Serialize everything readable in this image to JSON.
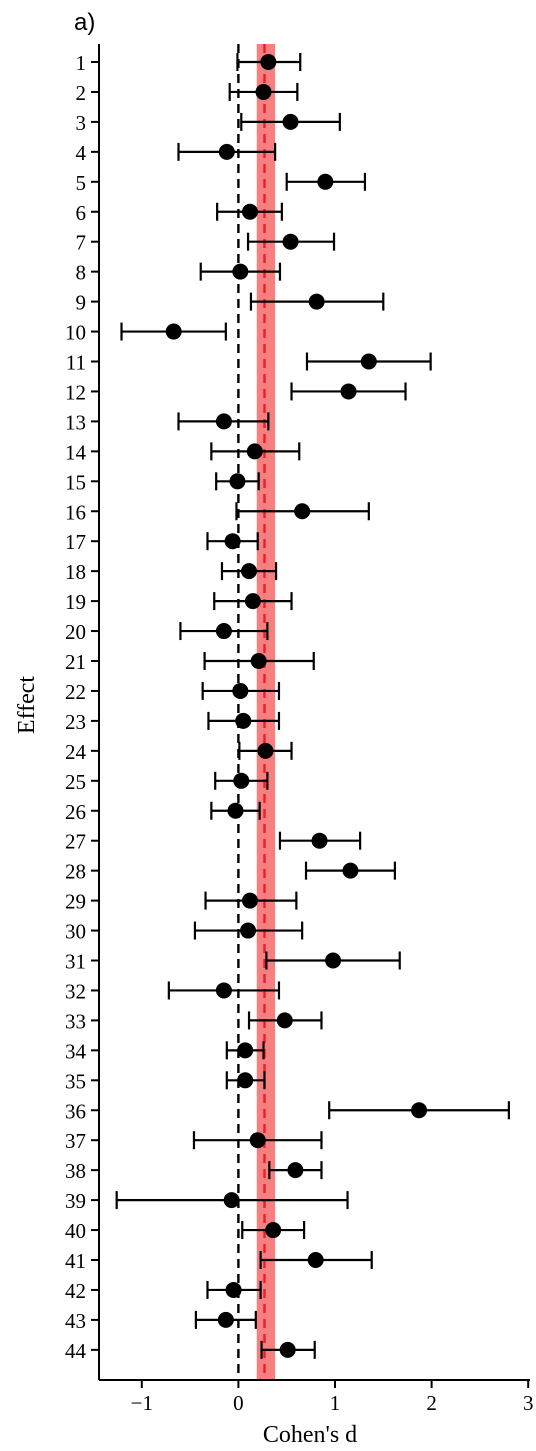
{
  "chart_data": {
    "type": "forest",
    "panel_label": "a)",
    "xlabel": "Cohen's d",
    "ylabel": "Effect",
    "xlim": [
      -1.45,
      3.0
    ],
    "xticks": [
      -1,
      0,
      1,
      2,
      3
    ],
    "xtick_labels": [
      "−1",
      "0",
      "1",
      "2",
      "3"
    ],
    "reference_line": 0,
    "pooled_effect": {
      "estimate": 0.27,
      "ci_low": 0.19,
      "ci_high": 0.38,
      "line_color": "#e8202a",
      "band_color": "#f77f7f"
    },
    "marker_color": "#000000",
    "effects": [
      {
        "label": "1",
        "estimate": 0.31,
        "ci_low": -0.01,
        "ci_high": 0.64
      },
      {
        "label": "2",
        "estimate": 0.26,
        "ci_low": -0.09,
        "ci_high": 0.61
      },
      {
        "label": "3",
        "estimate": 0.54,
        "ci_low": 0.03,
        "ci_high": 1.05
      },
      {
        "label": "4",
        "estimate": -0.12,
        "ci_low": -0.62,
        "ci_high": 0.38
      },
      {
        "label": "5",
        "estimate": 0.9,
        "ci_low": 0.5,
        "ci_high": 1.31
      },
      {
        "label": "6",
        "estimate": 0.12,
        "ci_low": -0.22,
        "ci_high": 0.45
      },
      {
        "label": "7",
        "estimate": 0.54,
        "ci_low": 0.1,
        "ci_high": 0.99
      },
      {
        "label": "8",
        "estimate": 0.02,
        "ci_low": -0.39,
        "ci_high": 0.43
      },
      {
        "label": "9",
        "estimate": 0.81,
        "ci_low": 0.13,
        "ci_high": 1.5
      },
      {
        "label": "10",
        "estimate": -0.67,
        "ci_low": -1.21,
        "ci_high": -0.13
      },
      {
        "label": "11",
        "estimate": 1.35,
        "ci_low": 0.71,
        "ci_high": 1.99
      },
      {
        "label": "12",
        "estimate": 1.14,
        "ci_low": 0.55,
        "ci_high": 1.73
      },
      {
        "label": "13",
        "estimate": -0.15,
        "ci_low": -0.62,
        "ci_high": 0.31
      },
      {
        "label": "14",
        "estimate": 0.17,
        "ci_low": -0.28,
        "ci_high": 0.63
      },
      {
        "label": "15",
        "estimate": -0.01,
        "ci_low": -0.23,
        "ci_high": 0.21
      },
      {
        "label": "16",
        "estimate": 0.66,
        "ci_low": -0.02,
        "ci_high": 1.35
      },
      {
        "label": "17",
        "estimate": -0.06,
        "ci_low": -0.32,
        "ci_high": 0.2
      },
      {
        "label": "18",
        "estimate": 0.11,
        "ci_low": -0.17,
        "ci_high": 0.39
      },
      {
        "label": "19",
        "estimate": 0.15,
        "ci_low": -0.25,
        "ci_high": 0.55
      },
      {
        "label": "20",
        "estimate": -0.15,
        "ci_low": -0.6,
        "ci_high": 0.3
      },
      {
        "label": "21",
        "estimate": 0.21,
        "ci_low": -0.35,
        "ci_high": 0.78
      },
      {
        "label": "22",
        "estimate": 0.02,
        "ci_low": -0.37,
        "ci_high": 0.42
      },
      {
        "label": "23",
        "estimate": 0.05,
        "ci_low": -0.31,
        "ci_high": 0.42
      },
      {
        "label": "24",
        "estimate": 0.28,
        "ci_low": 0.01,
        "ci_high": 0.55
      },
      {
        "label": "25",
        "estimate": 0.03,
        "ci_low": -0.24,
        "ci_high": 0.3
      },
      {
        "label": "26",
        "estimate": -0.03,
        "ci_low": -0.28,
        "ci_high": 0.22
      },
      {
        "label": "27",
        "estimate": 0.84,
        "ci_low": 0.43,
        "ci_high": 1.26
      },
      {
        "label": "28",
        "estimate": 1.16,
        "ci_low": 0.7,
        "ci_high": 1.62
      },
      {
        "label": "29",
        "estimate": 0.12,
        "ci_low": -0.34,
        "ci_high": 0.6
      },
      {
        "label": "30",
        "estimate": 0.1,
        "ci_low": -0.45,
        "ci_high": 0.66
      },
      {
        "label": "31",
        "estimate": 0.98,
        "ci_low": 0.29,
        "ci_high": 1.67
      },
      {
        "label": "32",
        "estimate": -0.15,
        "ci_low": -0.72,
        "ci_high": 0.42
      },
      {
        "label": "33",
        "estimate": 0.48,
        "ci_low": 0.11,
        "ci_high": 0.86
      },
      {
        "label": "34",
        "estimate": 0.07,
        "ci_low": -0.12,
        "ci_high": 0.26
      },
      {
        "label": "35",
        "estimate": 0.07,
        "ci_low": -0.12,
        "ci_high": 0.27
      },
      {
        "label": "36",
        "estimate": 1.87,
        "ci_low": 0.94,
        "ci_high": 2.8
      },
      {
        "label": "37",
        "estimate": 0.2,
        "ci_low": -0.46,
        "ci_high": 0.86
      },
      {
        "label": "38",
        "estimate": 0.59,
        "ci_low": 0.32,
        "ci_high": 0.86
      },
      {
        "label": "39",
        "estimate": -0.07,
        "ci_low": -1.26,
        "ci_high": 1.13
      },
      {
        "label": "40",
        "estimate": 0.36,
        "ci_low": 0.04,
        "ci_high": 0.68
      },
      {
        "label": "41",
        "estimate": 0.8,
        "ci_low": 0.23,
        "ci_high": 1.38
      },
      {
        "label": "42",
        "estimate": -0.05,
        "ci_low": -0.32,
        "ci_high": 0.23
      },
      {
        "label": "43",
        "estimate": -0.13,
        "ci_low": -0.44,
        "ci_high": 0.18
      },
      {
        "label": "44",
        "estimate": 0.51,
        "ci_low": 0.24,
        "ci_high": 0.79
      }
    ]
  }
}
